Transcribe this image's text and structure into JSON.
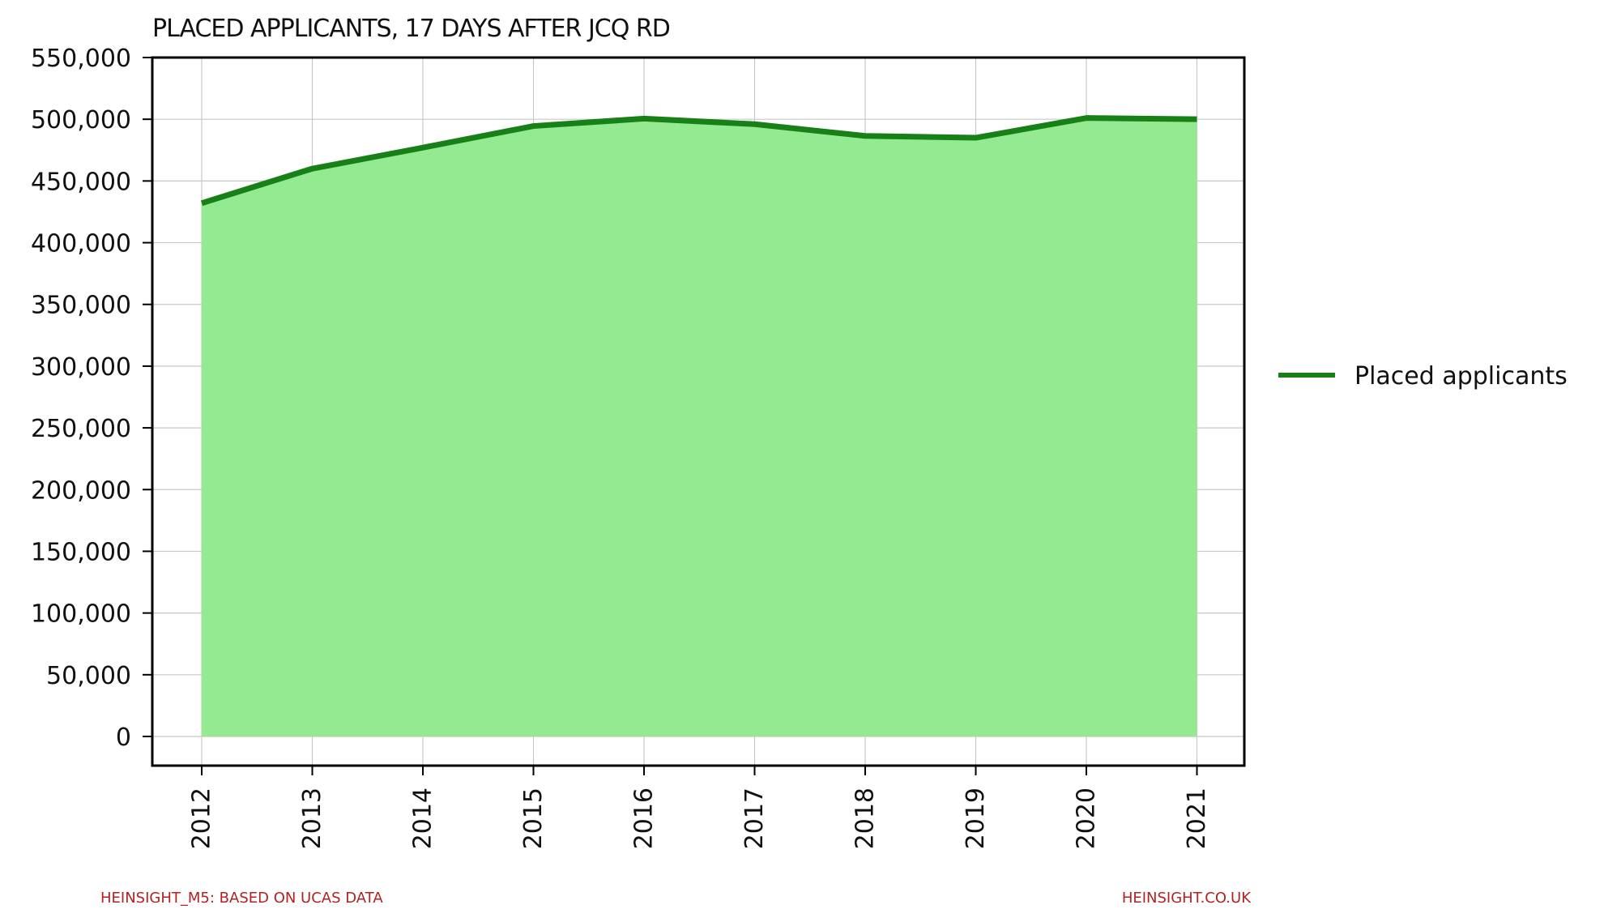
{
  "chart_data": {
    "type": "area",
    "title": "PLACED APPLICANTS, 17 DAYS AFTER JCQ RD",
    "xlabel": "",
    "ylabel": "",
    "x": [
      "2012",
      "2013",
      "2014",
      "2015",
      "2016",
      "2017",
      "2018",
      "2019",
      "2020",
      "2021"
    ],
    "series": [
      {
        "name": "Placed applicants",
        "values": [
          432000,
          460000,
          477000,
          494500,
          500500,
          496000,
          486500,
          485000,
          501000,
          500000
        ]
      }
    ],
    "ylim": [
      0,
      550000
    ],
    "yticks": [
      "0",
      "50,000",
      "100,000",
      "150,000",
      "200,000",
      "250,000",
      "300,000",
      "350,000",
      "400,000",
      "450,000",
      "500,000",
      "550,000"
    ],
    "grid": true,
    "legend_position": "right",
    "colors": {
      "line": "#178017",
      "fill": "#93ea91",
      "grid": "#c8c8c8",
      "footer": "#b22222"
    }
  },
  "footer": {
    "left": "HEINSIGHT_M5: BASED ON UCAS DATA",
    "right": "HEINSIGHT.CO.UK"
  }
}
